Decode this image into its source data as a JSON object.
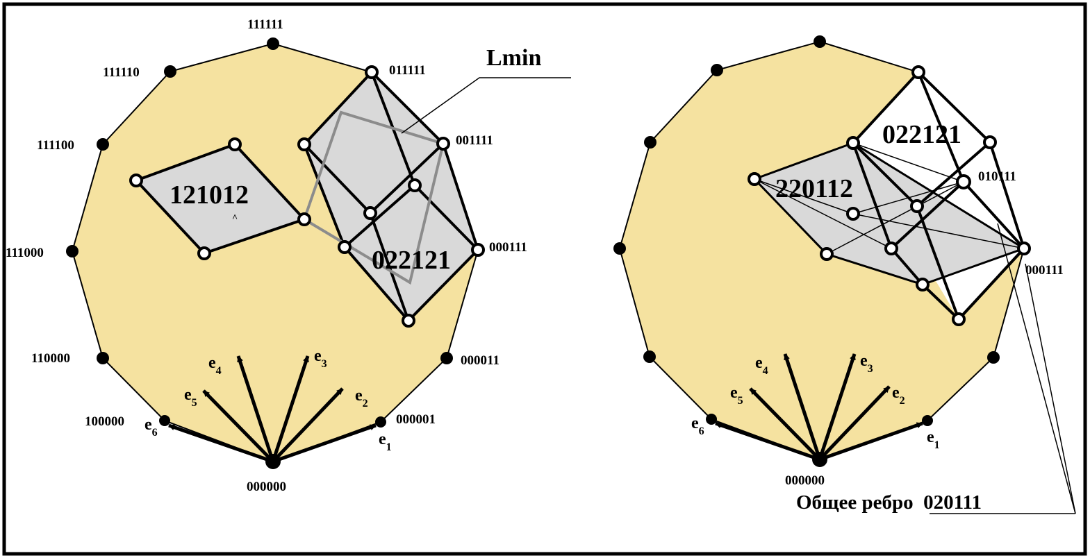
{
  "left_figure": {
    "vertex_labels": {
      "v0": "111111",
      "v1": "011111",
      "v2": "001111",
      "v3": "000111",
      "v4": "000011",
      "v5": "000001",
      "v6": "000000",
      "v7": "100000",
      "v8": "110000",
      "v9": "111000",
      "v10": "111100",
      "v11": "111110"
    },
    "cell_labels": {
      "rhombus": "121012",
      "cube": "022121"
    },
    "callout_label": "Lmin",
    "vectors": [
      {
        "base": "e",
        "sub": "1"
      },
      {
        "base": "e",
        "sub": "2"
      },
      {
        "base": "e",
        "sub": "3"
      },
      {
        "base": "e",
        "sub": "4"
      },
      {
        "base": "e",
        "sub": "5"
      },
      {
        "base": "e",
        "sub": "6"
      }
    ]
  },
  "right_figure": {
    "vertex_labels": {
      "v3": "000111",
      "v6": "000000",
      "inner": "010111"
    },
    "cell_labels": {
      "top": "022121",
      "left": "220112"
    },
    "caption": "Общее ребро  020111",
    "vectors": [
      {
        "base": "e",
        "sub": "1"
      },
      {
        "base": "e",
        "sub": "2"
      },
      {
        "base": "e",
        "sub": "3"
      },
      {
        "base": "e",
        "sub": "4"
      },
      {
        "base": "e",
        "sub": "5"
      },
      {
        "base": "e",
        "sub": "6"
      }
    ]
  },
  "colors": {
    "polygon_fill": "#f5e2a0",
    "cell_fill": "#d9d9d9",
    "gray_path": "#8c8c8c",
    "ink": "#000000"
  }
}
